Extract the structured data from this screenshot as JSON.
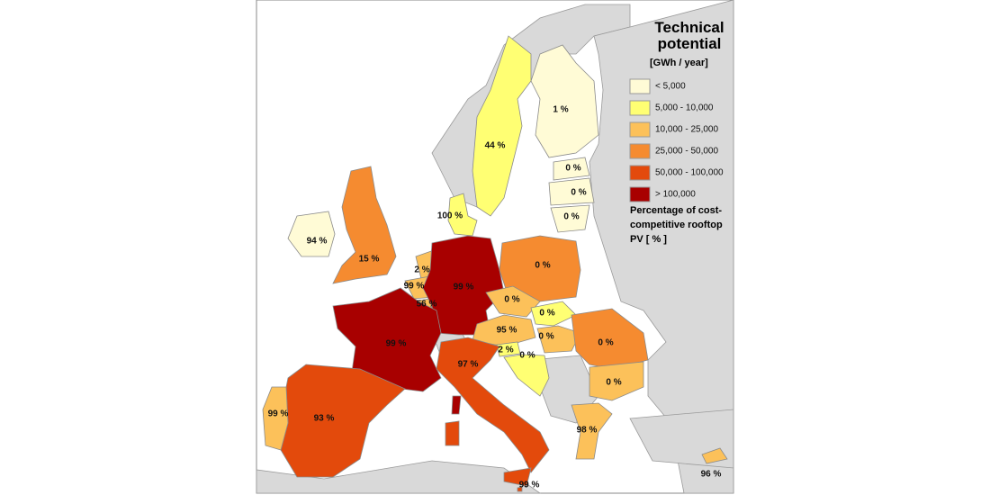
{
  "title": "Technical potential",
  "unit": "[GWh / year]",
  "legend": {
    "items": [
      {
        "label": "< 5,000",
        "color": "#fffbd6"
      },
      {
        "label": "5,000 -  10,000",
        "color": "#ffff73"
      },
      {
        "label": "10,000 -  25,000",
        "color": "#fcc15a"
      },
      {
        "label": "25,000 -  50,000",
        "color": "#f58b30"
      },
      {
        "label": "50,000 - 100,000",
        "color": "#e34a0c"
      },
      {
        "label": "> 100,000",
        "color": "#a80000"
      }
    ],
    "subtitle": "Percentage of cost-competitive rooftop PV  [ % ]"
  },
  "regions": [
    {
      "label": "1 %",
      "class": 0
    },
    {
      "label": "44 %",
      "class": 1
    },
    {
      "label": "0 %",
      "class": 0
    },
    {
      "label": "0 %",
      "class": 0
    },
    {
      "label": "0 %",
      "class": 0
    },
    {
      "label": "100 %",
      "class": 1
    },
    {
      "label": "94 %",
      "class": 0
    },
    {
      "label": "15 %",
      "class": 3
    },
    {
      "label": "2 %",
      "class": 2
    },
    {
      "label": "99 %",
      "class": 2
    },
    {
      "label": "56 %",
      "class": 2
    },
    {
      "label": "99 %",
      "class": 5
    },
    {
      "label": "0 %",
      "class": 3
    },
    {
      "label": "0 %",
      "class": 2
    },
    {
      "label": "0 %",
      "class": 1
    },
    {
      "label": "95 %",
      "class": 2
    },
    {
      "label": "0 %",
      "class": 2
    },
    {
      "label": "2 %",
      "class": 1
    },
    {
      "label": "0 %",
      "class": 1
    },
    {
      "label": "0 %",
      "class": 3
    },
    {
      "label": "0 %",
      "class": 2
    },
    {
      "label": "99 %",
      "class": 5
    },
    {
      "label": "97 %",
      "class": 4
    },
    {
      "label": "93 %",
      "class": 4
    },
    {
      "label": "99 %",
      "class": 2
    },
    {
      "label": "98 %",
      "class": 2
    },
    {
      "label": "99 %",
      "class": 4
    },
    {
      "label": "96 %",
      "class": 2
    }
  ]
}
